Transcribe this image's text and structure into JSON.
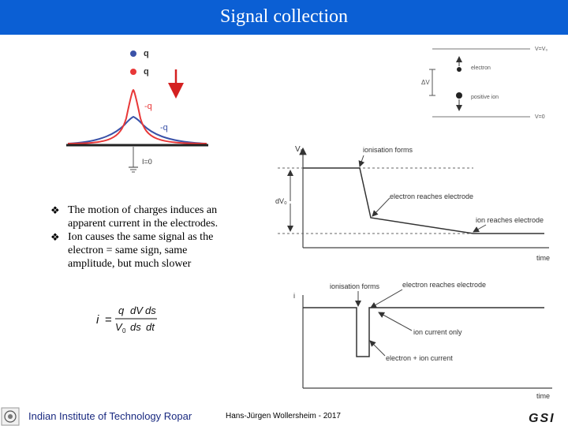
{
  "header": {
    "title": "Signal collection"
  },
  "charge_diagram": {
    "q_label_1": "q",
    "q_label_2": "q",
    "neg_q_label_1": "-q",
    "neg_q_label_2": "-q",
    "current_label": "I=0",
    "colors": {
      "red": "#e83838",
      "blue": "#3a52a8"
    }
  },
  "drift_diagram": {
    "top_label": "V=V₀",
    "bottom_label": "V=0",
    "electron_label": "electron",
    "ion_label": "positive ion",
    "delta_v_label": "ΔV"
  },
  "voltage_plot": {
    "y_label": "V₀",
    "dv_label": "dV₀",
    "x_label": "time",
    "ann_ionisation": "ionisation forms",
    "ann_electron": "electron reaches electrode",
    "ann_ion": "ion reaches electrode"
  },
  "current_plot": {
    "y_label": "i",
    "x_label": "time",
    "ann_ionisation": "ionisation forms",
    "ann_electron": "electron reaches electrode",
    "ann_ion_only": "ion current only",
    "ann_electron_ion": "electron + ion current"
  },
  "bullets": [
    "The motion of charges induces an apparent current in the electrodes.",
    "Ion causes the same signal as the electron = same sign, same amplitude, but much slower"
  ],
  "formula": {
    "lhs": "i",
    "q": "q",
    "V0": "V",
    "V0_sub": "0",
    "dV": "dV",
    "ds_top": "ds",
    "ds_bot": "ds",
    "dt": "dt"
  },
  "footer": {
    "institute": "Indian Institute of Technology Ropar",
    "author": "Hans-Jürgen Wollersheim - 2017",
    "logo_text": "GSI"
  }
}
